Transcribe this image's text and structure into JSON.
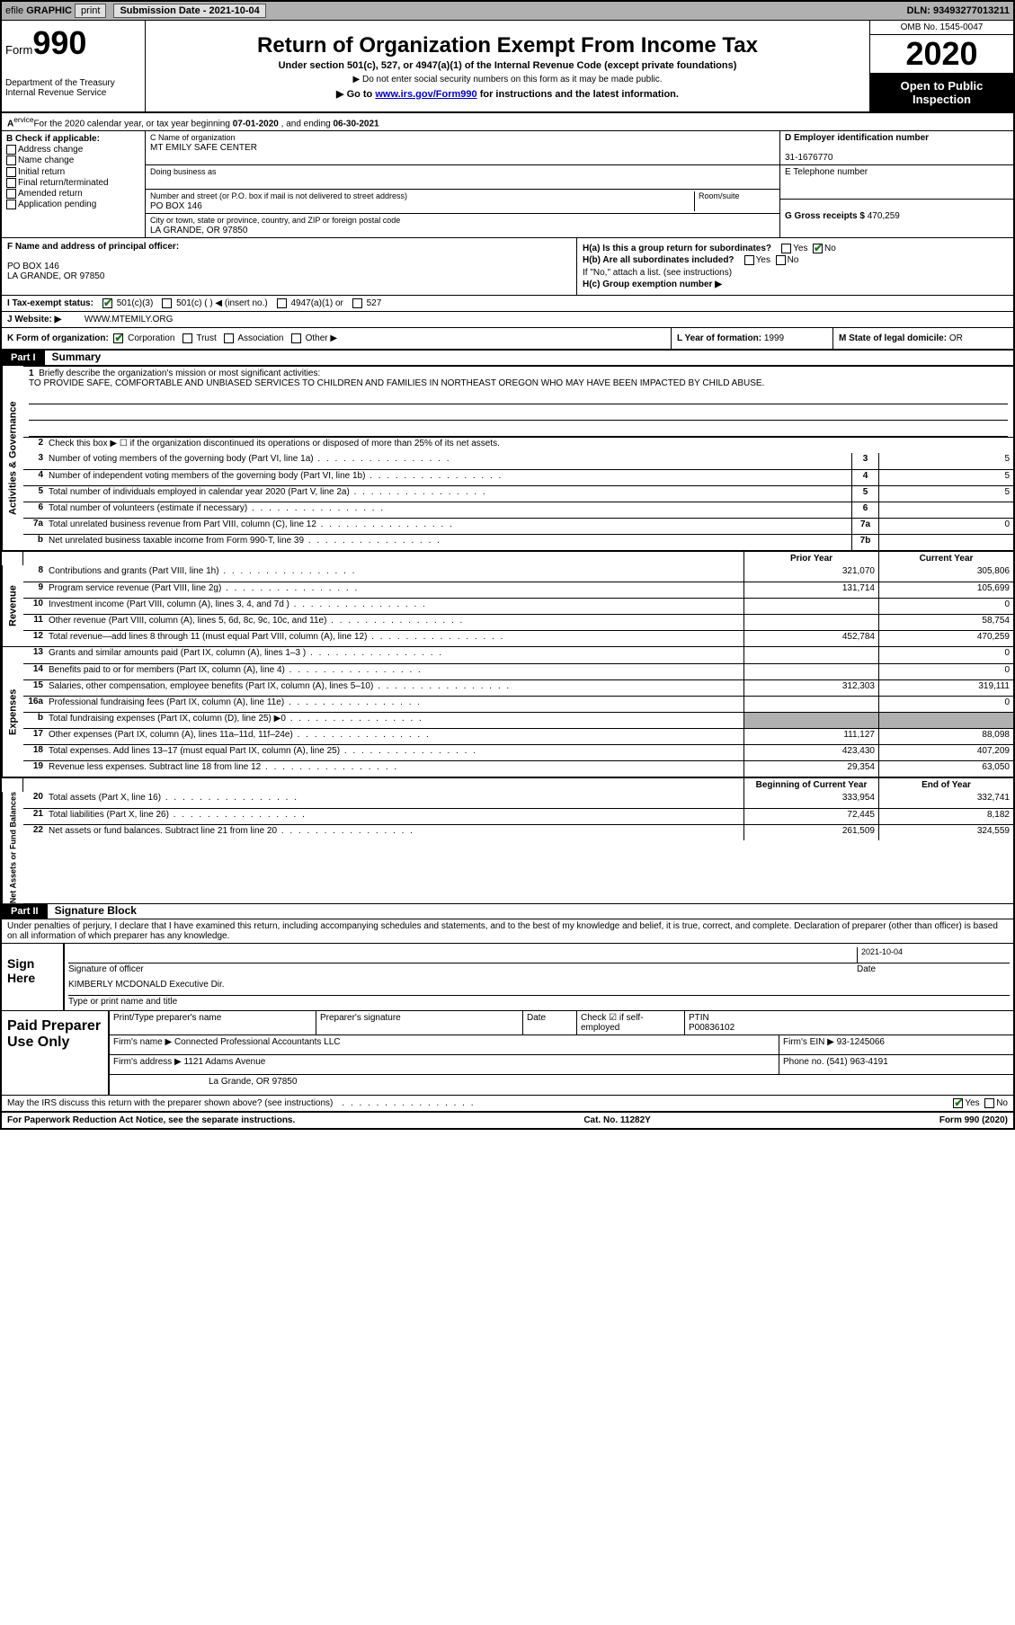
{
  "topbar": {
    "efile": "efile",
    "graphic": "GRAPHIC",
    "print": "print",
    "sub_label": "Submission Date - 2021-10-04",
    "dln": "DLN: 93493277013211"
  },
  "header": {
    "form_label": "Form",
    "form_no": "990",
    "dept": "Department of the Treasury\nInternal Revenue Service",
    "title": "Return of Organization Exempt From Income Tax",
    "sub1": "Under section 501(c), 527, or 4947(a)(1) of the Internal Revenue Code (except private foundations)",
    "sub2": "▶ Do not enter social security numbers on this form as it may be made public.",
    "sub3": "▶ Go to www.irs.gov/Form990 for instructions and the latest information.",
    "link_text": "www.irs.gov/Form990",
    "omb": "OMB No. 1545-0047",
    "year": "2020",
    "open_pub": "Open to Public Inspection"
  },
  "line_a": {
    "prefix": "A",
    "text": "For the 2020 calendar year, or tax year beginning ",
    "begin": "07-01-2020",
    "mid": " , and ending ",
    "end": "06-30-2021"
  },
  "b": {
    "label": "B Check if applicable:",
    "opts": [
      "Address change",
      "Name change",
      "Initial return",
      "Final return/terminated",
      "Amended return",
      "Application pending"
    ]
  },
  "c": {
    "name_lbl": "C Name of organization",
    "name": "MT EMILY SAFE CENTER",
    "dba_lbl": "Doing business as",
    "dba": "",
    "addr_lbl": "Number and street (or P.O. box if mail is not delivered to street address)",
    "room_lbl": "Room/suite",
    "addr": "PO BOX 146",
    "city_lbl": "City or town, state or province, country, and ZIP or foreign postal code",
    "city": "LA GRANDE, OR  97850"
  },
  "d": {
    "ein_lbl": "D Employer identification number",
    "ein": "31-1676770",
    "e_lbl": "E Telephone number",
    "e_val": "",
    "g_lbl": "G Gross receipts $",
    "g_val": "470,259"
  },
  "f": {
    "lbl": "F  Name and address of principal officer:",
    "l1": "",
    "l2": "PO BOX 146",
    "l3": "LA GRANDE, OR  97850"
  },
  "h": {
    "a_lbl": "H(a)  Is this a group return for subordinates?",
    "yes": "Yes",
    "no": "No",
    "b_lbl": "H(b)  Are all subordinates included?",
    "b_note": "If \"No,\" attach a list. (see instructions)",
    "c_lbl": "H(c)  Group exemption number ▶"
  },
  "i": {
    "lbl": "I  Tax-exempt status:",
    "o1": "501(c)(3)",
    "o2": "501(c) (  ) ◀ (insert no.)",
    "o3": "4947(a)(1) or",
    "o4": "527"
  },
  "j": {
    "lbl": "J  Website: ▶",
    "val": "WWW.MTEMILY.ORG"
  },
  "k": {
    "lbl": "K Form of organization:",
    "o1": "Corporation",
    "o2": "Trust",
    "o3": "Association",
    "o4": "Other ▶"
  },
  "l": {
    "lbl": "L Year of formation:",
    "val": "1999"
  },
  "m": {
    "lbl": "M State of legal domicile:",
    "val": "OR"
  },
  "part1": {
    "tag": "Part I",
    "title": "Summary"
  },
  "p1": {
    "q1_lbl": "Briefly describe the organization's mission or most significant activities:",
    "mission": "TO PROVIDE SAFE, COMFORTABLE AND UNBIASED SERVICES TO CHILDREN AND FAMILIES IN NORTHEAST OREGON WHO MAY HAVE BEEN IMPACTED BY CHILD ABUSE.",
    "q2": "Check this box ▶ ☐  if the organization discontinued its operations or disposed of more than 25% of its net assets.",
    "lines_ag": [
      {
        "n": "3",
        "t": "Number of voting members of the governing body (Part VI, line 1a)",
        "box": "3",
        "v": "5"
      },
      {
        "n": "4",
        "t": "Number of independent voting members of the governing body (Part VI, line 1b)",
        "box": "4",
        "v": "5"
      },
      {
        "n": "5",
        "t": "Total number of individuals employed in calendar year 2020 (Part V, line 2a)",
        "box": "5",
        "v": "5"
      },
      {
        "n": "6",
        "t": "Total number of volunteers (estimate if necessary)",
        "box": "6",
        "v": ""
      },
      {
        "n": "7a",
        "t": "Total unrelated business revenue from Part VIII, column (C), line 12",
        "box": "7a",
        "v": "0"
      },
      {
        "n": "b",
        "t": "Net unrelated business taxable income from Form 990-T, line 39",
        "box": "7b",
        "v": ""
      }
    ],
    "prior_lbl": "Prior Year",
    "curr_lbl": "Current Year",
    "rev_tab": "Revenue",
    "rev": [
      {
        "n": "8",
        "t": "Contributions and grants (Part VIII, line 1h)",
        "p": "321,070",
        "c": "305,806"
      },
      {
        "n": "9",
        "t": "Program service revenue (Part VIII, line 2g)",
        "p": "131,714",
        "c": "105,699"
      },
      {
        "n": "10",
        "t": "Investment income (Part VIII, column (A), lines 3, 4, and 7d )",
        "p": "",
        "c": "0"
      },
      {
        "n": "11",
        "t": "Other revenue (Part VIII, column (A), lines 5, 6d, 8c, 9c, 10c, and 11e)",
        "p": "",
        "c": "58,754"
      },
      {
        "n": "12",
        "t": "Total revenue—add lines 8 through 11 (must equal Part VIII, column (A), line 12)",
        "p": "452,784",
        "c": "470,259"
      }
    ],
    "exp_tab": "Expenses",
    "exp": [
      {
        "n": "13",
        "t": "Grants and similar amounts paid (Part IX, column (A), lines 1–3 )",
        "p": "",
        "c": "0"
      },
      {
        "n": "14",
        "t": "Benefits paid to or for members (Part IX, column (A), line 4)",
        "p": "",
        "c": "0"
      },
      {
        "n": "15",
        "t": "Salaries, other compensation, employee benefits (Part IX, column (A), lines 5–10)",
        "p": "312,303",
        "c": "319,111"
      },
      {
        "n": "16a",
        "t": "Professional fundraising fees (Part IX, column (A), line 11e)",
        "p": "",
        "c": "0"
      },
      {
        "n": "b",
        "t": "Total fundraising expenses (Part IX, column (D), line 25) ▶0",
        "shade": true
      },
      {
        "n": "17",
        "t": "Other expenses (Part IX, column (A), lines 11a–11d, 11f–24e)",
        "p": "111,127",
        "c": "88,098"
      },
      {
        "n": "18",
        "t": "Total expenses. Add lines 13–17 (must equal Part IX, column (A), line 25)",
        "p": "423,430",
        "c": "407,209"
      },
      {
        "n": "19",
        "t": "Revenue less expenses. Subtract line 18 from line 12",
        "p": "29,354",
        "c": "63,050"
      }
    ],
    "na_tab": "Net Assets or Fund Balances",
    "boy_lbl": "Beginning of Current Year",
    "eoy_lbl": "End of Year",
    "na": [
      {
        "n": "20",
        "t": "Total assets (Part X, line 16)",
        "p": "333,954",
        "c": "332,741"
      },
      {
        "n": "21",
        "t": "Total liabilities (Part X, line 26)",
        "p": "72,445",
        "c": "8,182"
      },
      {
        "n": "22",
        "t": "Net assets or fund balances. Subtract line 21 from line 20",
        "p": "261,509",
        "c": "324,559"
      }
    ],
    "ag_tab": "Activities & Governance"
  },
  "part2": {
    "tag": "Part II",
    "title": "Signature Block"
  },
  "decl": "Under penalties of perjury, I declare that I have examined this return, including accompanying schedules and statements, and to the best of my knowledge and belief, it is true, correct, and complete. Declaration of preparer (other than officer) is based on all information of which preparer has any knowledge.",
  "sign": {
    "lbl": "Sign Here",
    "sig_lbl": "Signature of officer",
    "date_lbl": "Date",
    "date": "2021-10-04",
    "name": "KIMBERLY MCDONALD  Executive Dir.",
    "name_lbl": "Type or print name and title"
  },
  "prep": {
    "lbl": "Paid Preparer Use Only",
    "r1": {
      "c1": "Print/Type preparer's name",
      "c2": "Preparer's signature",
      "c3": "Date",
      "c4": "Check ☑ if self-employed",
      "c5_lbl": "PTIN",
      "c5": "P00836102"
    },
    "r2": {
      "c1_lbl": "Firm's name    ▶",
      "c1": "Connected Professional Accountants LLC",
      "c2_lbl": "Firm's EIN ▶",
      "c2": "93-1245066"
    },
    "r3": {
      "c1_lbl": "Firm's address ▶",
      "c1": "1121 Adams Avenue",
      "c2_lbl": "Phone no.",
      "c2": "(541) 963-4191"
    },
    "r4": {
      "c1": "La Grande, OR  97850"
    }
  },
  "discuss": {
    "q": "May the IRS discuss this return with the preparer shown above? (see instructions)",
    "yes": "Yes",
    "no": "No"
  },
  "foot": {
    "l": "For Paperwork Reduction Act Notice, see the separate instructions.",
    "m": "Cat. No. 11282Y",
    "r": "Form 990 (2020)"
  }
}
